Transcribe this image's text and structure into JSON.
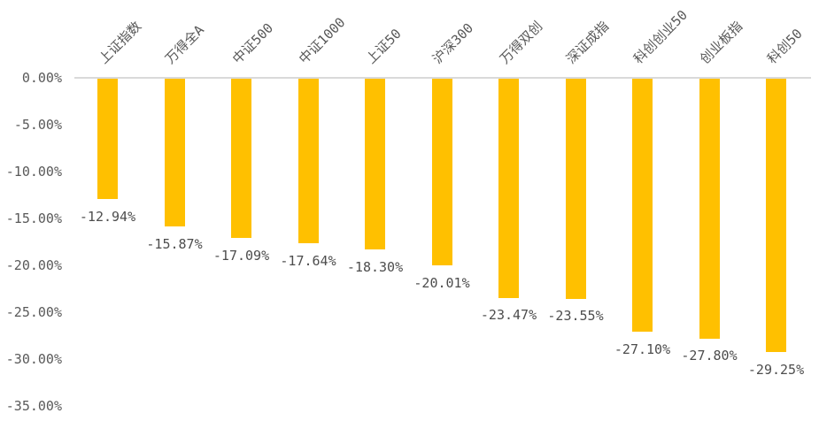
{
  "chart_data": {
    "type": "bar",
    "title": "",
    "xlabel": "",
    "ylabel": "",
    "categories": [
      "上证指数",
      "万得全A",
      "中证500",
      "中证1000",
      "上证50",
      "沪深300",
      "万得双创",
      "深证成指",
      "科创创业50",
      "创业板指",
      "科创50"
    ],
    "values": [
      -12.94,
      -15.87,
      -17.09,
      -17.64,
      -18.3,
      -20.01,
      -23.47,
      -23.55,
      -27.1,
      -27.8,
      -29.25
    ],
    "data_labels": [
      "-12.94%",
      "-15.87%",
      "-17.09%",
      "-17.64%",
      "-18.30%",
      "-20.01%",
      "-23.47%",
      "-23.55%",
      "-27.10%",
      "-27.80%",
      "-29.25%"
    ],
    "y_axis": {
      "tick_labels": [
        "0.00%",
        "-5.00%",
        "-10.00%",
        "-15.00%",
        "-20.00%",
        "-25.00%",
        "-30.00%",
        "-35.00%"
      ],
      "tick_values": [
        0,
        -5,
        -10,
        -15,
        -20,
        -25,
        -30,
        -35
      ],
      "ylim": [
        -35,
        0
      ]
    },
    "legend": null,
    "grid": false,
    "category_label_rotation_deg": 45,
    "colors": {
      "bar_fill": "#ffc000",
      "axis_line": "#d9d9d9",
      "tick_label_text": "#595959",
      "data_label_text": "#4d4d4d",
      "background": "#ffffff"
    }
  }
}
